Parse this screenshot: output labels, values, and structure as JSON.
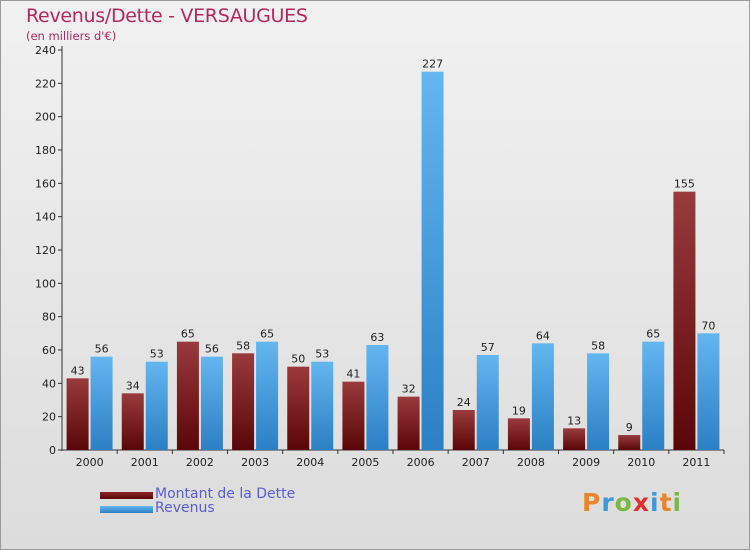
{
  "chart_data": {
    "type": "bar",
    "title": "Revenus/Dette - VERSAUGUES",
    "subtitle": "(en milliers d'€)",
    "categories": [
      "2000",
      "2001",
      "2002",
      "2003",
      "2004",
      "2005",
      "2006",
      "2007",
      "2008",
      "2009",
      "2010",
      "2011"
    ],
    "series": [
      {
        "name": "Montant de la Dette",
        "color": "#7a1618",
        "values": [
          43,
          34,
          65,
          58,
          50,
          41,
          32,
          24,
          19,
          13,
          9,
          155
        ]
      },
      {
        "name": "Revenus",
        "color": "#4aa3e6",
        "values": [
          56,
          53,
          56,
          65,
          53,
          63,
          227,
          57,
          64,
          58,
          65,
          70
        ]
      }
    ],
    "ylim": [
      0,
      240
    ],
    "yticks": [
      0,
      20,
      40,
      60,
      80,
      100,
      120,
      140,
      160,
      180,
      200,
      220,
      240
    ],
    "grid": false,
    "legend": "bottom-left"
  },
  "brand": {
    "letters": [
      "P",
      "r",
      "o",
      "x",
      "i",
      "t",
      "i"
    ],
    "colors": [
      "#e8852a",
      "#3a9ad9",
      "#7cb844",
      "#e0312c",
      "#3a9ad9",
      "#e8852a",
      "#7cb844"
    ]
  }
}
